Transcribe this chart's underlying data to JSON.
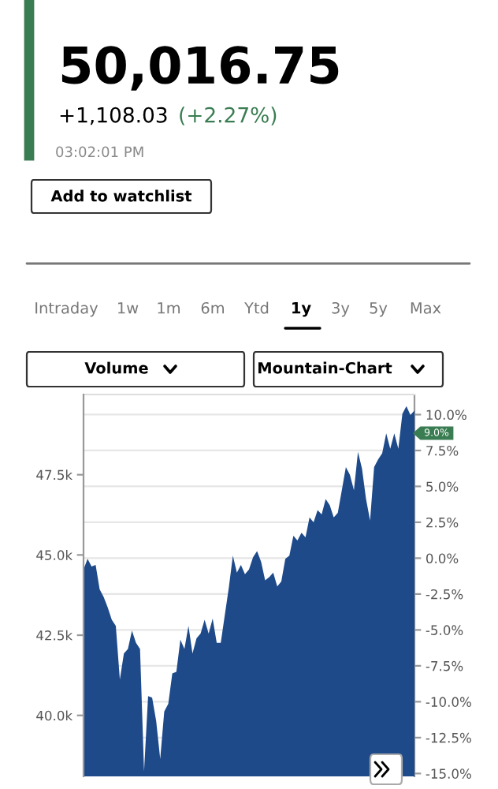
{
  "chart_data": {
    "type": "area",
    "categories": [
      null,
      null,
      null,
      null,
      null,
      null,
      null,
      null,
      null,
      null,
      null,
      null,
      null,
      null,
      null,
      null,
      null,
      null,
      null,
      null,
      null,
      null,
      null,
      null,
      null,
      null,
      null,
      null,
      null,
      null,
      null,
      null,
      null,
      null,
      null,
      null,
      null,
      null,
      null,
      null,
      null,
      null,
      null,
      null,
      null,
      null,
      null,
      null,
      null,
      null,
      null,
      null,
      null,
      null,
      null,
      null,
      null,
      null,
      null,
      null,
      null,
      null,
      null,
      null,
      null,
      null,
      null,
      null,
      null,
      null,
      null,
      null,
      null,
      null,
      null,
      null,
      null,
      null,
      null,
      null,
      null,
      null,
      null
    ],
    "series": [
      {
        "color": "#1e4a8a",
        "values": [
          44.55,
          44.88,
          44.64,
          44.69,
          43.93,
          43.69,
          43.36,
          42.98,
          42.79,
          41.12,
          41.93,
          42.07,
          42.64,
          42.26,
          42.07,
          38.26,
          40.6,
          40.55,
          39.83,
          38.64,
          40.12,
          40.36,
          41.31,
          41.36,
          42.36,
          42.07,
          42.79,
          41.93,
          42.4,
          42.55,
          42.98,
          42.55,
          43.02,
          42.26,
          42.26,
          43.12,
          43.98,
          44.98,
          44.45,
          44.69,
          44.4,
          44.55,
          44.93,
          45.12,
          44.79,
          44.21,
          44.31,
          44.45,
          44.02,
          44.17,
          44.88,
          44.98,
          45.6,
          45.45,
          45.69,
          45.55,
          46.17,
          46.02,
          46.4,
          46.26,
          46.74,
          46.55,
          46.17,
          46.31,
          47.02,
          47.74,
          47.5,
          47.02,
          48.21,
          47.69,
          46.74,
          46.07,
          47.74,
          47.98,
          48.17,
          48.79,
          48.31,
          48.79,
          48.31,
          49.4,
          49.64,
          49.36,
          49.5
        ]
      }
    ],
    "ylim": [
      38.1,
      50.0
    ],
    "yticks": [
      {
        "value": 40.0,
        "label": "40.0k"
      },
      {
        "value": 42.5,
        "label": "42.5k"
      },
      {
        "value": 45.0,
        "label": "45.0k"
      },
      {
        "value": 47.5,
        "label": "47.5k"
      }
    ],
    "y2lim": [
      -15.2,
      11.4
    ],
    "y2ticks": [
      {
        "value": -15.0,
        "label": "-15.0%"
      },
      {
        "value": -12.5,
        "label": "-12.5%"
      },
      {
        "value": -10.0,
        "label": "-10.0%"
      },
      {
        "value": -7.5,
        "label": "-7.5%"
      },
      {
        "value": -5.0,
        "label": "-5.0%"
      },
      {
        "value": -2.5,
        "label": "-2.5%"
      },
      {
        "value": 0.0,
        "label": "0.0%"
      },
      {
        "value": 2.5,
        "label": "2.5%"
      },
      {
        "value": 5.0,
        "label": "5.0%"
      },
      {
        "value": 7.5,
        "label": "7.5%"
      },
      {
        "value": 10.0,
        "label": "10.0%"
      }
    ],
    "grid": "y",
    "legend": false,
    "annotations": [
      "50,016.75",
      "+1,108.03",
      "(+2.27%)",
      "03:02:01 PM",
      "Add to watchlist",
      "Intraday",
      "1w",
      "1m",
      "6m",
      "Ytd",
      "1y",
      "3y",
      "5y",
      "Max",
      "Volume",
      "Mountain-Chart",
      "9.0%"
    ]
  }
}
